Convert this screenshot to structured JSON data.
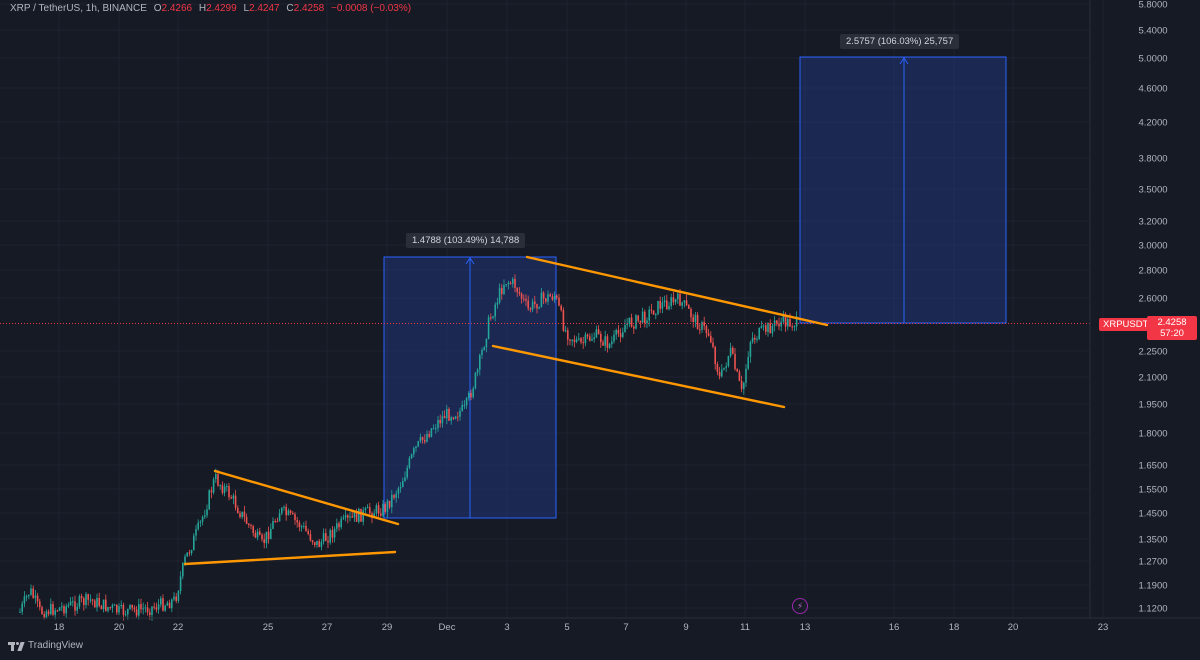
{
  "legend": {
    "symbol": "XRP / TetherUS, 1h, BINANCE",
    "open_label": "O",
    "open": "2.4266",
    "high_label": "H",
    "high": "2.4299",
    "low_label": "L",
    "low": "2.4247",
    "close_label": "C",
    "close": "2.4258",
    "change": "−0.0008 (−0.03%)"
  },
  "price_axis": {
    "ticks": [
      "5.8000",
      "5.4000",
      "5.0000",
      "4.6000",
      "4.2000",
      "3.8000",
      "3.5000",
      "3.2000",
      "3.0000",
      "2.8000",
      "2.6000",
      "2.2500",
      "2.1000",
      "1.9500",
      "1.8000",
      "1.6500",
      "1.5500",
      "1.4500",
      "1.3500",
      "1.2700",
      "1.1900",
      "1.1200"
    ],
    "symbol_badge": "XRPUSDT",
    "current_price": "2.4258",
    "countdown": "57:20"
  },
  "time_axis": {
    "labels": [
      "18",
      "20",
      "22",
      "25",
      "27",
      "29",
      "Dec",
      "3",
      "5",
      "7",
      "9",
      "11",
      "13",
      "16",
      "18",
      "20",
      "23"
    ]
  },
  "measurements": [
    {
      "label": "1.4788 (103.49%) 14,788"
    },
    {
      "label": "2.5757 (106.03%) 25,757"
    }
  ],
  "branding": {
    "name": "TradingView"
  },
  "colors": {
    "background": "#161a25",
    "up_candle": "#26a69a",
    "down_candle": "#ef5350",
    "trendline": "#ff9800",
    "measure_fill": "#1e3a8a",
    "measure_line": "#2962ff",
    "price_badge": "#f23645"
  },
  "icons": [
    "lightning-bolt-icon",
    "tradingview-logo-icon"
  ]
}
